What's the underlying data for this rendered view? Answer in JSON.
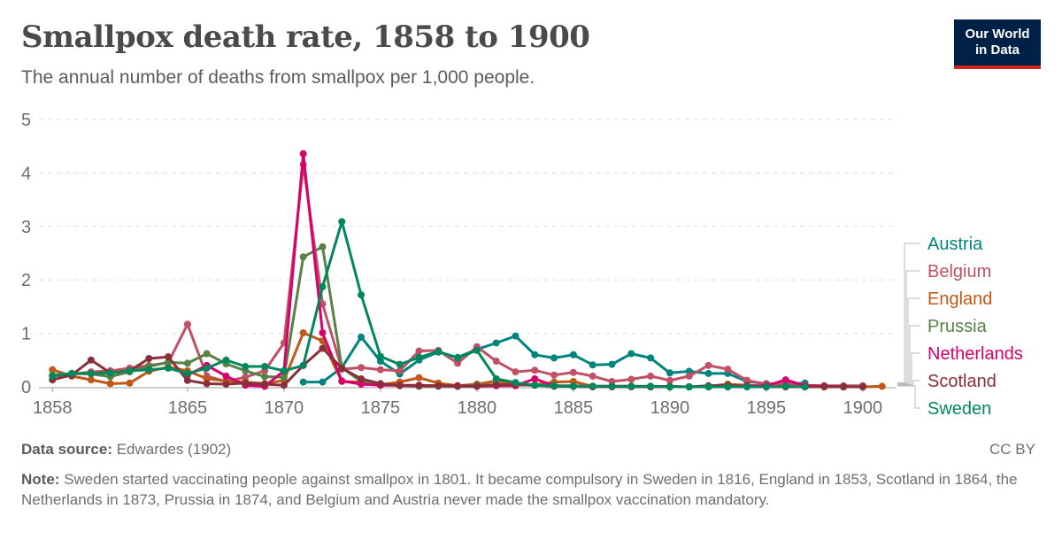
{
  "header": {
    "title": "Smallpox death rate, 1858 to 1900",
    "subtitle": "The annual number of deaths from smallpox per 1,000 people.",
    "logo_line1": "Our World",
    "logo_line2": "in Data"
  },
  "footer": {
    "source_label": "Data source:",
    "source_text": "Edwardes (1902)",
    "license": "CC BY",
    "note_label": "Note:",
    "note_text": "Sweden started vaccinating people against smallpox in 1801. It became compulsory in Sweden in 1816, England in 1853, Scotland in 1864, the Netherlands in 1873, Prussia in 1874, and Belgium and Austria never made the smallpox vaccination mandatory."
  },
  "chart_data": {
    "type": "line",
    "title": "Smallpox death rate, 1858 to 1900",
    "subtitle": "The annual number of deaths from smallpox per 1,000 people.",
    "xlim": [
      1857.3,
      1901.7
    ],
    "ylim": [
      0,
      5
    ],
    "x_ticks": [
      1858,
      1865,
      1870,
      1875,
      1880,
      1885,
      1890,
      1895,
      1900
    ],
    "y_ticks": [
      0,
      1,
      2,
      3,
      4,
      5
    ],
    "grid": "horizontal dashed",
    "legend_placement": "right",
    "series": [
      {
        "name": "Austria",
        "color": "#00847e",
        "x": [
          1871,
          1872,
          1873,
          1874,
          1875,
          1876,
          1877,
          1878,
          1879,
          1880,
          1881,
          1882,
          1883,
          1884,
          1885,
          1886,
          1887,
          1888,
          1889,
          1890,
          1891,
          1892,
          1893,
          1894,
          1895,
          1896,
          1897
        ],
        "y": [
          0.09,
          0.09,
          0.36,
          0.93,
          0.48,
          0.24,
          0.5,
          0.65,
          0.55,
          0.7,
          0.82,
          0.95,
          0.6,
          0.54,
          0.6,
          0.41,
          0.42,
          0.62,
          0.54,
          0.26,
          0.29,
          0.25,
          0.25,
          0.1,
          0.06,
          0.05,
          0.07
        ]
      },
      {
        "name": "Belgium",
        "color": "#c15065",
        "x": [
          1858,
          1859,
          1860,
          1861,
          1862,
          1863,
          1864,
          1865,
          1866,
          1867,
          1868,
          1869,
          1870,
          1871,
          1872,
          1873,
          1874,
          1875,
          1876,
          1877,
          1878,
          1879,
          1880,
          1881,
          1882,
          1883,
          1884,
          1885,
          1886,
          1887,
          1888,
          1889,
          1890,
          1891,
          1892,
          1893,
          1894,
          1895,
          1896,
          1897,
          1898,
          1899,
          1900
        ],
        "y": [
          0.2,
          0.23,
          0.28,
          0.3,
          0.35,
          0.4,
          0.45,
          1.17,
          0.2,
          0.1,
          0.18,
          0.3,
          0.82,
          4.16,
          1.55,
          0.33,
          0.36,
          0.32,
          0.3,
          0.67,
          0.68,
          0.44,
          0.75,
          0.48,
          0.28,
          0.31,
          0.22,
          0.27,
          0.2,
          0.1,
          0.14,
          0.2,
          0.12,
          0.2,
          0.4,
          0.33,
          0.12,
          0.05,
          0.06,
          0.03,
          0.02,
          0.02,
          0.02
        ]
      },
      {
        "name": "England",
        "color": "#c05917",
        "x": [
          1858,
          1859,
          1860,
          1861,
          1862,
          1863,
          1864,
          1865,
          1866,
          1867,
          1868,
          1869,
          1870,
          1871,
          1872,
          1873,
          1874,
          1875,
          1876,
          1877,
          1878,
          1879,
          1880,
          1881,
          1882,
          1883,
          1884,
          1885,
          1886,
          1887,
          1888,
          1889,
          1890,
          1891,
          1892,
          1893,
          1894,
          1895,
          1896,
          1897,
          1898,
          1899,
          1900,
          1901
        ],
        "y": [
          0.32,
          0.2,
          0.13,
          0.06,
          0.07,
          0.29,
          0.37,
          0.3,
          0.15,
          0.11,
          0.09,
          0.06,
          0.12,
          1.01,
          0.86,
          0.1,
          0.09,
          0.04,
          0.09,
          0.17,
          0.07,
          0.02,
          0.05,
          0.11,
          0.05,
          0.04,
          0.09,
          0.1,
          0.01,
          0.01,
          0.01,
          0.01,
          0.0,
          0.0,
          0.01,
          0.05,
          0.03,
          0.01,
          0.01,
          0.0,
          0.0,
          0.0,
          0.0,
          0.01
        ]
      },
      {
        "name": "Prussia",
        "color": "#578145",
        "x": [
          1858,
          1859,
          1860,
          1861,
          1862,
          1863,
          1864,
          1865,
          1866,
          1867,
          1868,
          1869,
          1870,
          1871,
          1872,
          1873,
          1874,
          1875,
          1876,
          1877,
          1878,
          1879,
          1880,
          1881,
          1882,
          1883,
          1884,
          1885,
          1886,
          1887,
          1888,
          1889,
          1890,
          1891,
          1892,
          1893,
          1894,
          1895,
          1896,
          1897
        ],
        "y": [
          0.22,
          0.25,
          0.24,
          0.19,
          0.28,
          0.38,
          0.46,
          0.44,
          0.62,
          0.43,
          0.3,
          0.19,
          0.18,
          2.43,
          2.62,
          0.36,
          0.1,
          0.04,
          0.03,
          0.01,
          0.01,
          0.01,
          0.03,
          0.04,
          0.04,
          0.03,
          0.02,
          0.02,
          0.01,
          0.01,
          0.01,
          0.0,
          0.0,
          0.0,
          0.0,
          0.0,
          0.0,
          0.0,
          0.0,
          0.0
        ]
      },
      {
        "name": "Netherlands",
        "color": "#d7006d",
        "x": [
          1865,
          1866,
          1867,
          1868,
          1869,
          1870,
          1871,
          1872,
          1873,
          1874,
          1875,
          1876,
          1877,
          1878,
          1879,
          1880,
          1881,
          1882,
          1883,
          1884,
          1885,
          1886,
          1887,
          1888,
          1889,
          1890,
          1891,
          1892,
          1893,
          1894,
          1895,
          1896,
          1897,
          1898,
          1899,
          1900
        ],
        "y": [
          0.22,
          0.4,
          0.2,
          0.03,
          0.01,
          0.3,
          4.36,
          1.01,
          0.11,
          0.05,
          0.03,
          0.03,
          0.03,
          0.02,
          0.02,
          0.01,
          0.02,
          0.02,
          0.15,
          0.02,
          0.01,
          0.01,
          0.01,
          0.01,
          0.0,
          0.0,
          0.0,
          0.0,
          0.0,
          0.02,
          0.02,
          0.13,
          0.02,
          0.01,
          0.0,
          0.0
        ]
      },
      {
        "name": "Scotland",
        "color": "#883039",
        "x": [
          1858,
          1859,
          1860,
          1861,
          1862,
          1863,
          1864,
          1865,
          1866,
          1867,
          1868,
          1869,
          1870,
          1871,
          1872,
          1873,
          1874,
          1875,
          1876,
          1877,
          1878,
          1879,
          1880,
          1881,
          1882,
          1883,
          1884,
          1885,
          1886,
          1887,
          1888,
          1889,
          1890,
          1891,
          1892,
          1893,
          1894,
          1895,
          1896,
          1897,
          1898,
          1899,
          1900
        ],
        "y": [
          0.13,
          0.22,
          0.5,
          0.26,
          0.3,
          0.53,
          0.56,
          0.12,
          0.06,
          0.05,
          0.07,
          0.05,
          0.03,
          0.4,
          0.72,
          0.35,
          0.15,
          0.06,
          0.02,
          0.02,
          0.02,
          0.01,
          0.01,
          0.04,
          0.04,
          0.03,
          0.01,
          0.01,
          0.0,
          0.0,
          0.0,
          0.0,
          0.01,
          0.0,
          0.02,
          0.03,
          0.01,
          0.0,
          0.0,
          0.0,
          0.0,
          0.0,
          0.0
        ]
      },
      {
        "name": "Sweden",
        "color": "#00875e",
        "x": [
          1858,
          1859,
          1860,
          1861,
          1862,
          1863,
          1864,
          1865,
          1866,
          1867,
          1868,
          1869,
          1870,
          1871,
          1872,
          1873,
          1874,
          1875,
          1876,
          1877,
          1878,
          1879,
          1880,
          1881,
          1882,
          1883,
          1884,
          1885,
          1886,
          1887,
          1888,
          1889,
          1890,
          1891,
          1892,
          1893,
          1894,
          1895,
          1896,
          1897
        ],
        "y": [
          0.2,
          0.25,
          0.25,
          0.26,
          0.3,
          0.32,
          0.35,
          0.25,
          0.35,
          0.5,
          0.38,
          0.38,
          0.3,
          0.4,
          1.87,
          3.09,
          1.72,
          0.57,
          0.42,
          0.55,
          0.66,
          0.54,
          0.68,
          0.15,
          0.08,
          0.03,
          0.02,
          0.01,
          0.01,
          0.01,
          0.01,
          0.01,
          0.0,
          0.0,
          0.0,
          0.0,
          0.0,
          0.0,
          0.01,
          0.0
        ]
      }
    ]
  }
}
